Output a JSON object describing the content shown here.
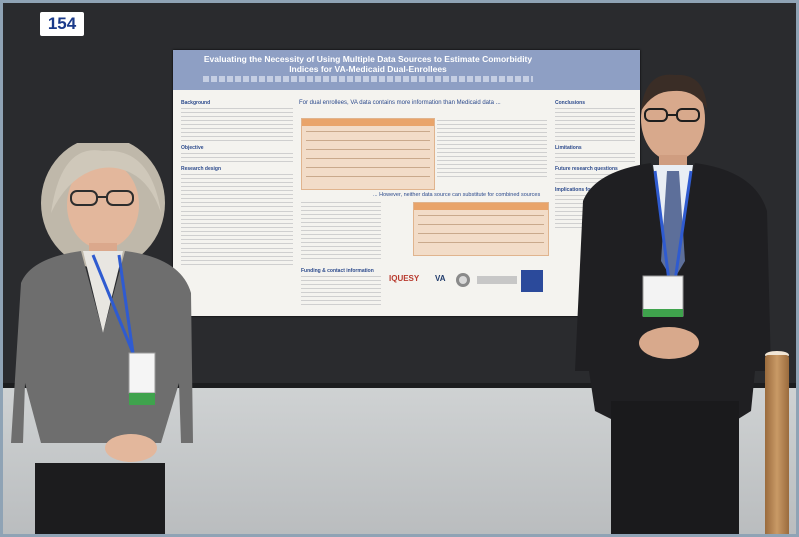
{
  "booth": {
    "number": "154"
  },
  "poster": {
    "title": "Evaluating the Necessity of Using Multiple Data Sources to Estimate Comorbidity Indices for VA-Medicaid Dual-Enrollees",
    "sections_left": [
      "Background",
      "Objective",
      "Research design"
    ],
    "headline_1": "For dual enrollees, VA data contains more information than Medicaid data ...",
    "headline_2": "... However, neither data source can substitute for combined sources",
    "section_funding": "Funding & contact information",
    "sections_right": [
      "Conclusions",
      "Limitations",
      "Future research questions",
      "Implications for practice"
    ],
    "logos": [
      "IQUESY",
      "VA"
    ]
  }
}
